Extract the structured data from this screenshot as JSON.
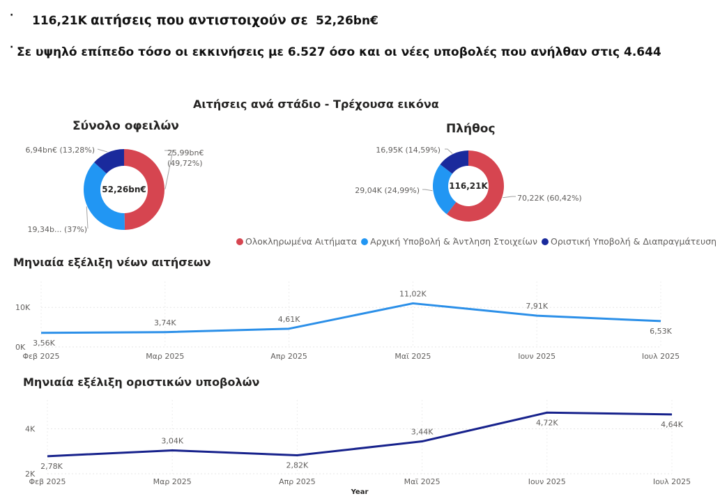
{
  "header": {
    "bullet": "·",
    "kpi_count": "116,21K",
    "kpi_text": "αιτήσεις που αντιστοιχούν σε",
    "kpi_amount": "52,26bn€",
    "summary": "Σε υψηλό επίπεδο τόσο οι εκκινήσεις με 6.527 όσο και οι νέες υποβολές που ανήλθαν στις 4.644"
  },
  "colors": {
    "red": "#d64550",
    "light_blue": "#2196f3",
    "dark_blue": "#1a2a9c",
    "line_blue": "#2b8fe8",
    "line_navy": "#17228c"
  },
  "section": {
    "title": "Αιτήσεις ανά στάδιο - Τρέχουσα εικόνα"
  },
  "legend": {
    "items": [
      {
        "label": "Ολοκληρωμένα Αιτήματα",
        "color": "#d64550"
      },
      {
        "label": "Αρχική Υποβολή & Άντληση Στοιχείων",
        "color": "#2196f3"
      },
      {
        "label": "Οριστική Υποβολή & Διαπραγμάτευση",
        "color": "#1a2a9c"
      }
    ]
  },
  "chart_data": [
    {
      "type": "pie",
      "title": "Σύνολο οφειλών",
      "center_label": "52,26bn€",
      "categories": [
        "Ολοκληρωμένα Αιτήματα",
        "Αρχική Υποβολή & Άντληση Στοιχείων",
        "Οριστική Υποβολή & Διαπραγμάτευση"
      ],
      "values": [
        25.99,
        19.34,
        6.94
      ],
      "percents": [
        49.72,
        37,
        13.28
      ],
      "labels": [
        "25,99bn€ (49,72%)",
        "19,34b... (37%)",
        "6,94bn€ (13,28%)"
      ]
    },
    {
      "type": "pie",
      "title": "Πλήθος",
      "center_label": "116,21K",
      "categories": [
        "Ολοκληρωμένα Αιτήματα",
        "Αρχική Υποβολή & Άντληση Στοιχείων",
        "Οριστική Υποβολή & Διαπραγμάτευση"
      ],
      "values": [
        70.22,
        29.04,
        16.95
      ],
      "percents": [
        60.42,
        24.99,
        14.59
      ],
      "labels": [
        "70,22K (60,42%)",
        "29,04K (24,99%)",
        "16,95K (14,59%)"
      ]
    },
    {
      "type": "line",
      "title": "Μηνιαία εξέλιξη νέων αιτήσεων",
      "x": [
        "Φεβ 2025",
        "Μαρ 2025",
        "Απρ 2025",
        "Μαϊ 2025",
        "Ιουν 2025",
        "Ιουλ 2025"
      ],
      "values": [
        3.56,
        3.74,
        4.61,
        11.02,
        7.91,
        6.53
      ],
      "data_labels": [
        "3,56K",
        "3,74K",
        "4,61K",
        "11,02K",
        "7,91K",
        "6,53K"
      ],
      "ytick_labels": [
        "0K",
        "10K"
      ],
      "yticks": [
        0,
        10
      ],
      "ylim": [
        0,
        15.5
      ],
      "xlabel": "",
      "grid": true
    },
    {
      "type": "line",
      "title": "Μηνιαία εξέλιξη οριστικών υποβολών",
      "x": [
        "Φεβ 2025",
        "Μαρ 2025",
        "Απρ 2025",
        "Μαϊ 2025",
        "Ιουν 2025",
        "Ιουλ 2025"
      ],
      "values": [
        2.78,
        3.04,
        2.82,
        3.44,
        4.72,
        4.64
      ],
      "data_labels": [
        "2,78K",
        "3,04K",
        "2,82K",
        "3,44K",
        "4,72K",
        "4,64K"
      ],
      "ytick_labels": [
        "2K",
        "4K"
      ],
      "yticks": [
        2,
        4
      ],
      "ylim": [
        2,
        5.1
      ],
      "xlabel": "Year",
      "grid": true
    }
  ]
}
